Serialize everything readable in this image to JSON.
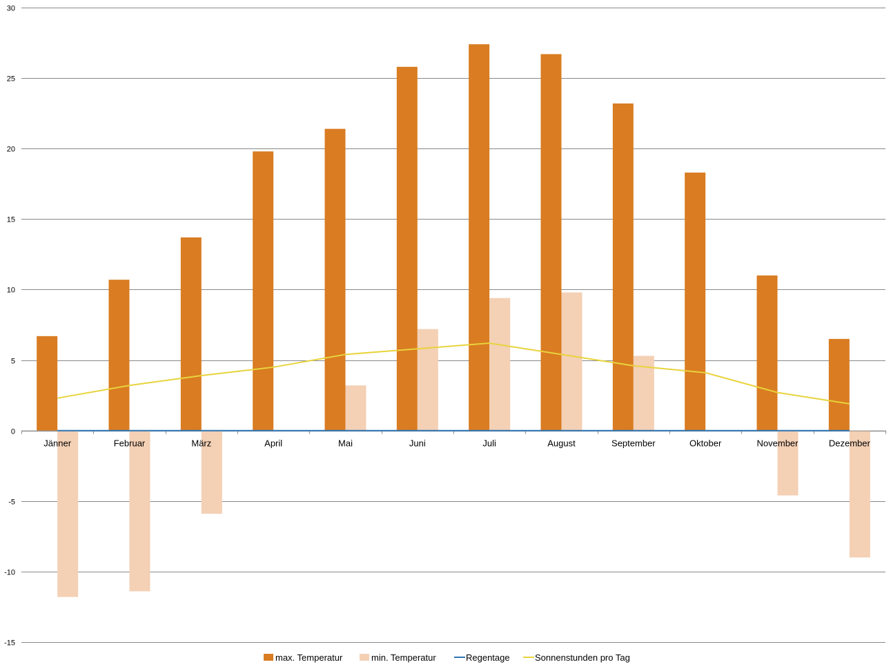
{
  "chart_data": {
    "type": "bar",
    "title": "",
    "xlabel": "",
    "ylabel": "",
    "ylim": [
      -15,
      30
    ],
    "yticks": [
      30,
      25,
      20,
      15,
      10,
      5,
      0,
      -5,
      -10,
      -15
    ],
    "categories": [
      "Jänner",
      "Februar",
      "März",
      "April",
      "Mai",
      "Juni",
      "Juli",
      "August",
      "September",
      "Oktober",
      "November",
      "Dezember"
    ],
    "series": [
      {
        "name": "max. Temperatur",
        "kind": "bar",
        "color": "#D97C22",
        "values": [
          6.7,
          10.7,
          13.7,
          19.8,
          21.4,
          25.8,
          27.4,
          26.7,
          23.2,
          18.3,
          11.0,
          6.5
        ]
      },
      {
        "name": "min. Temperatur",
        "kind": "bar",
        "color": "#F4D0B5",
        "values": [
          -11.8,
          -11.4,
          -5.9,
          0,
          3.2,
          7.2,
          9.4,
          9.8,
          5.3,
          0,
          -4.6,
          -9.0
        ]
      },
      {
        "name": "Regentage",
        "kind": "line",
        "color": "#2E75B6",
        "values": [
          0,
          0,
          0,
          0,
          0,
          0,
          0,
          0,
          0,
          0,
          0,
          0
        ]
      },
      {
        "name": "Sonnenstunden pro Tag",
        "kind": "line",
        "color": "#E8D33C",
        "values": [
          2.3,
          3.2,
          3.9,
          4.5,
          5.4,
          5.8,
          6.2,
          5.4,
          4.6,
          4.1,
          2.7,
          1.9
        ]
      }
    ],
    "grid": true,
    "legend_position": "bottom"
  }
}
